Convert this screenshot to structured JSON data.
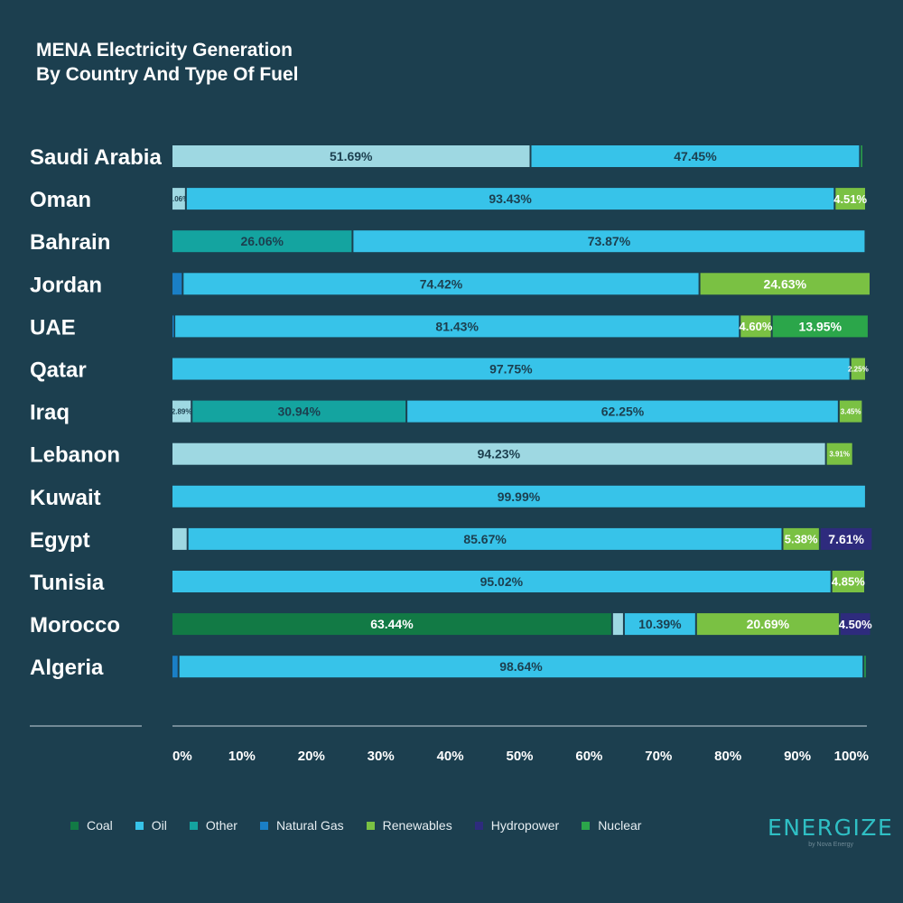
{
  "title_lines": [
    "MENA Electricity Generation",
    "By Country And Type Of Fuel"
  ],
  "colors": {
    "Coal": "#127a45",
    "Oil": "#37c3e9",
    "Other": "#14a4a0",
    "Natural Gas": "#1a7fc6",
    "Renewables": "#7ac143",
    "Hydropower": "#2e2b7d",
    "Nuclear": "#2ba64a",
    "Light": "#9ed8e2"
  },
  "logo": {
    "word": "ENERGIZE",
    "sub": "by Nova Energy"
  },
  "chart_data": {
    "type": "bar",
    "orientation": "horizontal",
    "stacked": true,
    "title": "MENA Electricity Generation By Country And Type Of Fuel",
    "xlabel": "",
    "ylabel": "",
    "xlim": [
      0,
      100
    ],
    "x_ticks": [
      "0%",
      "10%",
      "20%",
      "30%",
      "40%",
      "50%",
      "60%",
      "70%",
      "80%",
      "90%",
      "100%"
    ],
    "legend": [
      "Coal",
      "Oil",
      "Other",
      "Natural Gas",
      "Renewables",
      "Hydropower",
      "Nuclear"
    ],
    "legend_position": "bottom",
    "categories": [
      "Saudi Arabia",
      "Oman",
      "Bahrain",
      "Jordan",
      "UAE",
      "Qatar",
      "Iraq",
      "Lebanon",
      "Kuwait",
      "Egypt",
      "Tunisia",
      "Morocco",
      "Algeria"
    ],
    "rows": [
      {
        "country": "Saudi Arabia",
        "segments": [
          {
            "fuel": "Light",
            "value": 51.69,
            "label": "51.69%"
          },
          {
            "fuel": "Oil",
            "value": 47.45,
            "label": "47.45%"
          },
          {
            "fuel": "Nuclear",
            "value": 0.3,
            "label": ""
          }
        ]
      },
      {
        "country": "Oman",
        "segments": [
          {
            "fuel": "Light",
            "value": 2.06,
            "label": "2.06%"
          },
          {
            "fuel": "Oil",
            "value": 93.43,
            "label": "93.43%"
          },
          {
            "fuel": "Renewables",
            "value": 4.51,
            "label": "4.51%"
          }
        ]
      },
      {
        "country": "Bahrain",
        "segments": [
          {
            "fuel": "Other",
            "value": 26.06,
            "label": "26.06%"
          },
          {
            "fuel": "Oil",
            "value": 73.87,
            "label": "73.87%"
          }
        ]
      },
      {
        "country": "Jordan",
        "segments": [
          {
            "fuel": "Natural Gas",
            "value": 1.6,
            "label": ""
          },
          {
            "fuel": "Oil",
            "value": 74.42,
            "label": "74.42%"
          },
          {
            "fuel": "Renewables",
            "value": 24.63,
            "label": "24.63%"
          }
        ]
      },
      {
        "country": "UAE",
        "segments": [
          {
            "fuel": "Natural Gas",
            "value": 0.4,
            "label": ""
          },
          {
            "fuel": "Oil",
            "value": 81.43,
            "label": "81.43%"
          },
          {
            "fuel": "Renewables",
            "value": 4.6,
            "label": "4.60%"
          },
          {
            "fuel": "Nuclear",
            "value": 13.95,
            "label": "13.95%"
          }
        ]
      },
      {
        "country": "Qatar",
        "segments": [
          {
            "fuel": "Oil",
            "value": 97.75,
            "label": "97.75%"
          },
          {
            "fuel": "Renewables",
            "value": 2.25,
            "label": "2.25%"
          }
        ]
      },
      {
        "country": "Iraq",
        "segments": [
          {
            "fuel": "Light",
            "value": 2.89,
            "label": "2.89%"
          },
          {
            "fuel": "Other",
            "value": 30.94,
            "label": "30.94%"
          },
          {
            "fuel": "Oil",
            "value": 62.25,
            "label": "62.25%"
          },
          {
            "fuel": "Renewables",
            "value": 3.45,
            "label": "3.45%"
          }
        ]
      },
      {
        "country": "Lebanon",
        "segments": [
          {
            "fuel": "Light",
            "value": 94.23,
            "label": "94.23%"
          },
          {
            "fuel": "Renewables",
            "value": 3.91,
            "label": "3.91%"
          }
        ]
      },
      {
        "country": "Kuwait",
        "segments": [
          {
            "fuel": "Oil",
            "value": 99.99,
            "label": "99.99%"
          }
        ]
      },
      {
        "country": "Egypt",
        "segments": [
          {
            "fuel": "Light",
            "value": 2.3,
            "label": ""
          },
          {
            "fuel": "Oil",
            "value": 85.67,
            "label": "85.67%"
          },
          {
            "fuel": "Renewables",
            "value": 5.38,
            "label": "5.38%"
          },
          {
            "fuel": "Hydropower",
            "value": 7.61,
            "label": "7.61%"
          }
        ]
      },
      {
        "country": "Tunisia",
        "segments": [
          {
            "fuel": "Oil",
            "value": 95.02,
            "label": "95.02%"
          },
          {
            "fuel": "Renewables",
            "value": 4.85,
            "label": "4.85%"
          }
        ]
      },
      {
        "country": "Morocco",
        "segments": [
          {
            "fuel": "Coal",
            "value": 63.44,
            "label": "63.44%"
          },
          {
            "fuel": "Light",
            "value": 1.7,
            "label": ""
          },
          {
            "fuel": "Oil",
            "value": 10.39,
            "label": "10.39%"
          },
          {
            "fuel": "Renewables",
            "value": 20.69,
            "label": "20.69%"
          },
          {
            "fuel": "Hydropower",
            "value": 4.5,
            "label": "4.50%"
          }
        ]
      },
      {
        "country": "Algeria",
        "segments": [
          {
            "fuel": "Natural Gas",
            "value": 1.0,
            "label": ""
          },
          {
            "fuel": "Oil",
            "value": 98.64,
            "label": "98.64%"
          },
          {
            "fuel": "Nuclear",
            "value": 0.3,
            "label": ""
          }
        ]
      }
    ]
  }
}
